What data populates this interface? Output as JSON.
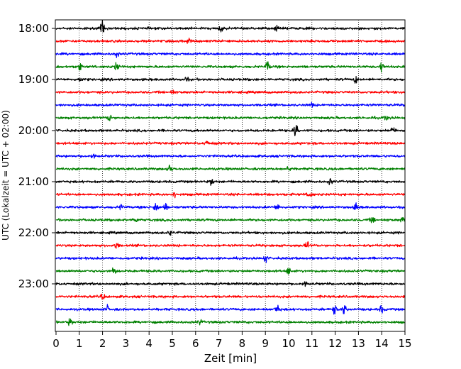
{
  "chart_data": {
    "type": "line",
    "title": "",
    "xlabel": "Zeit  [min]",
    "ylabel": "UTC (Lokalzeit = UTC + 02:00)",
    "xlim": [
      0,
      15
    ],
    "x_ticks": [
      "0",
      "1",
      "2",
      "3",
      "4",
      "5",
      "6",
      "7",
      "8",
      "9",
      "10",
      "11",
      "12",
      "13",
      "14",
      "15"
    ],
    "y_ticks": [
      "18:00",
      "19:00",
      "20:00",
      "21:00",
      "22:00",
      "23:00"
    ],
    "grid": "vertical dotted",
    "colors": {
      "black": "#000000",
      "red": "#ff0000",
      "blue": "#0000ff",
      "green": "#008000"
    },
    "series": [
      {
        "start": "18:00",
        "color": "black",
        "events": [
          [
            2.0,
            9
          ],
          [
            7.1,
            4
          ],
          [
            9.5,
            3
          ]
        ]
      },
      {
        "start": "18:15",
        "color": "red",
        "events": [
          [
            5.7,
            3
          ]
        ]
      },
      {
        "start": "18:30",
        "color": "blue",
        "events": [
          [
            2.6,
            3
          ]
        ]
      },
      {
        "start": "18:45",
        "color": "green",
        "events": [
          [
            1.0,
            5
          ],
          [
            2.6,
            5
          ],
          [
            9.1,
            6
          ],
          [
            14.0,
            6
          ]
        ]
      },
      {
        "start": "19:00",
        "color": "black",
        "events": [
          [
            1.0,
            3
          ],
          [
            5.6,
            3
          ],
          [
            12.9,
            4
          ]
        ]
      },
      {
        "start": "19:15",
        "color": "red",
        "events": [
          [
            5.0,
            2
          ]
        ]
      },
      {
        "start": "19:30",
        "color": "blue",
        "events": [
          [
            11.0,
            2
          ]
        ]
      },
      {
        "start": "19:45",
        "color": "green",
        "events": [
          [
            2.3,
            5
          ],
          [
            14.2,
            3
          ]
        ]
      },
      {
        "start": "20:00",
        "color": "black",
        "events": [
          [
            10.3,
            8
          ],
          [
            14.5,
            5
          ]
        ]
      },
      {
        "start": "20:15",
        "color": "red",
        "events": [
          [
            6.5,
            4
          ]
        ]
      },
      {
        "start": "20:30",
        "color": "blue",
        "events": [
          [
            1.6,
            3
          ]
        ]
      },
      {
        "start": "20:45",
        "color": "green",
        "events": [
          [
            4.9,
            6
          ],
          [
            10.0,
            3
          ]
        ]
      },
      {
        "start": "21:00",
        "color": "black",
        "events": [
          [
            6.7,
            4
          ],
          [
            11.8,
            3
          ]
        ]
      },
      {
        "start": "21:15",
        "color": "red",
        "events": [
          [
            5.1,
            3
          ],
          [
            10.9,
            5
          ]
        ]
      },
      {
        "start": "21:30",
        "color": "blue",
        "events": [
          [
            2.8,
            3
          ],
          [
            4.3,
            7
          ],
          [
            4.7,
            4
          ],
          [
            9.5,
            4
          ],
          [
            12.9,
            4
          ]
        ]
      },
      {
        "start": "21:45",
        "color": "green",
        "events": [
          [
            3.4,
            4
          ],
          [
            13.6,
            4
          ],
          [
            14.9,
            4
          ]
        ]
      },
      {
        "start": "22:00",
        "color": "black",
        "events": [
          [
            4.9,
            3
          ]
        ]
      },
      {
        "start": "22:15",
        "color": "red",
        "events": [
          [
            2.6,
            4
          ],
          [
            10.8,
            5
          ]
        ]
      },
      {
        "start": "22:30",
        "color": "blue",
        "events": [
          [
            9.0,
            4
          ]
        ]
      },
      {
        "start": "22:45",
        "color": "green",
        "events": [
          [
            2.5,
            4
          ],
          [
            10.0,
            4
          ]
        ]
      },
      {
        "start": "23:00",
        "color": "black",
        "events": [
          [
            10.7,
            3
          ]
        ]
      },
      {
        "start": "23:15",
        "color": "red",
        "events": [
          [
            2.0,
            3
          ]
        ]
      },
      {
        "start": "23:30",
        "color": "blue",
        "events": [
          [
            2.2,
            4
          ],
          [
            9.5,
            6
          ],
          [
            12.0,
            8
          ],
          [
            12.4,
            6
          ],
          [
            14.0,
            4
          ]
        ]
      },
      {
        "start": "23:45",
        "color": "green",
        "events": [
          [
            0.6,
            4
          ],
          [
            6.2,
            3
          ]
        ]
      }
    ]
  }
}
